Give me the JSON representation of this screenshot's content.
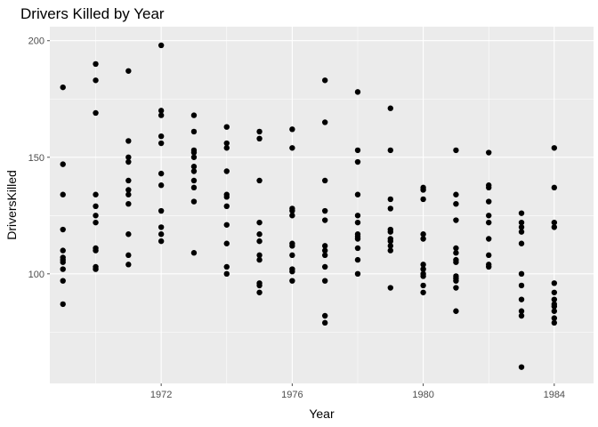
{
  "chart_data": {
    "type": "scatter",
    "title": "Drivers Killed by Year",
    "xlabel": "Year",
    "ylabel": "DriversKilled",
    "xlim": [
      1968.6,
      1985.2
    ],
    "ylim": [
      53,
      206
    ],
    "x_ticks": [
      1972,
      1976,
      1980,
      1984
    ],
    "x_tick_labels": [
      "1972",
      "1976",
      "1980",
      "1984"
    ],
    "y_ticks": [
      100,
      150,
      200
    ],
    "y_tick_labels": [
      "100",
      "150",
      "200"
    ],
    "x_minor_ticks": [
      1970,
      1974,
      1978,
      1982
    ],
    "y_minor_ticks": [
      75,
      125,
      175
    ],
    "grid": true,
    "legend": "none",
    "colors": {
      "panel": "#ebebeb",
      "grid_major": "#ffffff",
      "point": "#000000",
      "tick": "#4d4d4d"
    },
    "series": [
      {
        "points": [
          [
            1969,
            180
          ],
          [
            1969,
            147
          ],
          [
            1969,
            134
          ],
          [
            1969,
            119
          ],
          [
            1969,
            110
          ],
          [
            1969,
            107
          ],
          [
            1969,
            106
          ],
          [
            1969,
            105
          ],
          [
            1969,
            102
          ],
          [
            1969,
            97
          ],
          [
            1969,
            87
          ],
          [
            1970,
            190
          ],
          [
            1970,
            183
          ],
          [
            1970,
            169
          ],
          [
            1970,
            134
          ],
          [
            1970,
            129
          ],
          [
            1970,
            125
          ],
          [
            1970,
            122
          ],
          [
            1970,
            111
          ],
          [
            1970,
            110
          ],
          [
            1970,
            103
          ],
          [
            1970,
            102
          ],
          [
            1971,
            187
          ],
          [
            1971,
            157
          ],
          [
            1971,
            150
          ],
          [
            1971,
            148
          ],
          [
            1971,
            140
          ],
          [
            1971,
            136
          ],
          [
            1971,
            134
          ],
          [
            1971,
            130
          ],
          [
            1971,
            117
          ],
          [
            1971,
            108
          ],
          [
            1971,
            104
          ],
          [
            1972,
            198
          ],
          [
            1972,
            170
          ],
          [
            1972,
            168
          ],
          [
            1972,
            159
          ],
          [
            1972,
            156
          ],
          [
            1972,
            143
          ],
          [
            1972,
            138
          ],
          [
            1972,
            127
          ],
          [
            1972,
            120
          ],
          [
            1972,
            117
          ],
          [
            1972,
            114
          ],
          [
            1973,
            168
          ],
          [
            1973,
            161
          ],
          [
            1973,
            153
          ],
          [
            1973,
            152
          ],
          [
            1973,
            150
          ],
          [
            1973,
            146
          ],
          [
            1973,
            144
          ],
          [
            1973,
            140
          ],
          [
            1973,
            137
          ],
          [
            1973,
            131
          ],
          [
            1973,
            109
          ],
          [
            1974,
            163
          ],
          [
            1974,
            156
          ],
          [
            1974,
            154
          ],
          [
            1974,
            144
          ],
          [
            1974,
            134
          ],
          [
            1974,
            133
          ],
          [
            1974,
            129
          ],
          [
            1974,
            121
          ],
          [
            1974,
            113
          ],
          [
            1974,
            103
          ],
          [
            1974,
            100
          ],
          [
            1975,
            161
          ],
          [
            1975,
            158
          ],
          [
            1975,
            140
          ],
          [
            1975,
            122
          ],
          [
            1975,
            117
          ],
          [
            1975,
            114
          ],
          [
            1975,
            108
          ],
          [
            1975,
            106
          ],
          [
            1975,
            96
          ],
          [
            1975,
            95
          ],
          [
            1975,
            92
          ],
          [
            1976,
            162
          ],
          [
            1976,
            154
          ],
          [
            1976,
            128
          ],
          [
            1976,
            127
          ],
          [
            1976,
            125
          ],
          [
            1976,
            113
          ],
          [
            1976,
            112
          ],
          [
            1976,
            108
          ],
          [
            1976,
            102
          ],
          [
            1976,
            101
          ],
          [
            1976,
            97
          ],
          [
            1977,
            183
          ],
          [
            1977,
            165
          ],
          [
            1977,
            140
          ],
          [
            1977,
            127
          ],
          [
            1977,
            123
          ],
          [
            1977,
            112
          ],
          [
            1977,
            110
          ],
          [
            1977,
            108
          ],
          [
            1977,
            103
          ],
          [
            1977,
            97
          ],
          [
            1977,
            82
          ],
          [
            1977,
            79
          ],
          [
            1978,
            178
          ],
          [
            1978,
            153
          ],
          [
            1978,
            148
          ],
          [
            1978,
            134
          ],
          [
            1978,
            125
          ],
          [
            1978,
            122
          ],
          [
            1978,
            117
          ],
          [
            1978,
            116
          ],
          [
            1978,
            115
          ],
          [
            1978,
            111
          ],
          [
            1978,
            106
          ],
          [
            1978,
            100
          ],
          [
            1979,
            171
          ],
          [
            1979,
            153
          ],
          [
            1979,
            132
          ],
          [
            1979,
            128
          ],
          [
            1979,
            119
          ],
          [
            1979,
            118
          ],
          [
            1979,
            115
          ],
          [
            1979,
            114
          ],
          [
            1979,
            112
          ],
          [
            1979,
            110
          ],
          [
            1979,
            94
          ],
          [
            1980,
            137
          ],
          [
            1980,
            136
          ],
          [
            1980,
            132
          ],
          [
            1980,
            117
          ],
          [
            1980,
            115
          ],
          [
            1980,
            104
          ],
          [
            1980,
            102
          ],
          [
            1980,
            100
          ],
          [
            1980,
            99
          ],
          [
            1980,
            95
          ],
          [
            1980,
            92
          ],
          [
            1981,
            153
          ],
          [
            1981,
            134
          ],
          [
            1981,
            130
          ],
          [
            1981,
            123
          ],
          [
            1981,
            111
          ],
          [
            1981,
            109
          ],
          [
            1981,
            106
          ],
          [
            1981,
            105
          ],
          [
            1981,
            99
          ],
          [
            1981,
            98
          ],
          [
            1981,
            97
          ],
          [
            1981,
            94
          ],
          [
            1981,
            84
          ],
          [
            1982,
            152
          ],
          [
            1982,
            138
          ],
          [
            1982,
            137
          ],
          [
            1982,
            131
          ],
          [
            1982,
            125
          ],
          [
            1982,
            122
          ],
          [
            1982,
            115
          ],
          [
            1982,
            108
          ],
          [
            1982,
            104
          ],
          [
            1982,
            103
          ],
          [
            1983,
            126
          ],
          [
            1983,
            122
          ],
          [
            1983,
            120
          ],
          [
            1983,
            118
          ],
          [
            1983,
            113
          ],
          [
            1983,
            100
          ],
          [
            1983,
            95
          ],
          [
            1983,
            89
          ],
          [
            1983,
            84
          ],
          [
            1983,
            82
          ],
          [
            1983,
            60
          ],
          [
            1984,
            154
          ],
          [
            1984,
            137
          ],
          [
            1984,
            122
          ],
          [
            1984,
            120
          ],
          [
            1984,
            96
          ],
          [
            1984,
            92
          ],
          [
            1984,
            89
          ],
          [
            1984,
            87
          ],
          [
            1984,
            86
          ],
          [
            1984,
            84
          ],
          [
            1984,
            81
          ],
          [
            1984,
            79
          ]
        ]
      }
    ]
  }
}
